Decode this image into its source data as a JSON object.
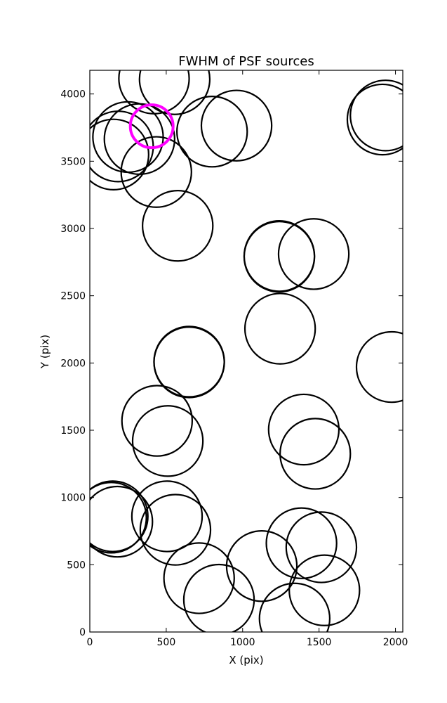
{
  "chart_data": {
    "type": "scatter",
    "title": "FWHM of PSF sources",
    "xlabel": "X (pix)",
    "ylabel": "Y (pix)",
    "xlim": [
      0,
      2048
    ],
    "ylim": [
      0,
      4176
    ],
    "xticks": [
      0,
      500,
      1000,
      1500,
      2000
    ],
    "yticks": [
      0,
      500,
      1000,
      1500,
      2000,
      2500,
      3000,
      3500,
      4000
    ],
    "grid": false,
    "series": [
      {
        "marker": "circle",
        "color": "#000000",
        "radius_data": 230,
        "points": [
          {
            "x": 420,
            "y": 4115
          },
          {
            "x": 555,
            "y": 4110
          },
          {
            "x": 960,
            "y": 3765
          },
          {
            "x": 800,
            "y": 3720
          },
          {
            "x": 1935,
            "y": 3840
          },
          {
            "x": 1915,
            "y": 3810
          },
          {
            "x": 250,
            "y": 3680
          },
          {
            "x": 325,
            "y": 3665
          },
          {
            "x": 185,
            "y": 3610
          },
          {
            "x": 155,
            "y": 3550
          },
          {
            "x": 435,
            "y": 3420
          },
          {
            "x": 575,
            "y": 3020
          },
          {
            "x": 1240,
            "y": 2795
          },
          {
            "x": 1240,
            "y": 2790
          },
          {
            "x": 1465,
            "y": 2810
          },
          {
            "x": 1245,
            "y": 2255
          },
          {
            "x": 650,
            "y": 2010
          },
          {
            "x": 650,
            "y": 2005
          },
          {
            "x": 1975,
            "y": 1970
          },
          {
            "x": 440,
            "y": 1570
          },
          {
            "x": 510,
            "y": 1420
          },
          {
            "x": 1400,
            "y": 1505
          },
          {
            "x": 1475,
            "y": 1325
          },
          {
            "x": 150,
            "y": 860
          },
          {
            "x": 140,
            "y": 850
          },
          {
            "x": 180,
            "y": 820
          },
          {
            "x": 505,
            "y": 860
          },
          {
            "x": 560,
            "y": 760
          },
          {
            "x": 715,
            "y": 400
          },
          {
            "x": 1125,
            "y": 490
          },
          {
            "x": 1385,
            "y": 660
          },
          {
            "x": 1515,
            "y": 630
          },
          {
            "x": 845,
            "y": 240
          },
          {
            "x": 1535,
            "y": 310
          },
          {
            "x": 1340,
            "y": 100
          }
        ]
      },
      {
        "marker": "circle",
        "color": "#ff00ff",
        "radius_data": 140,
        "points": [
          {
            "x": 405,
            "y": 3760
          }
        ]
      }
    ]
  }
}
